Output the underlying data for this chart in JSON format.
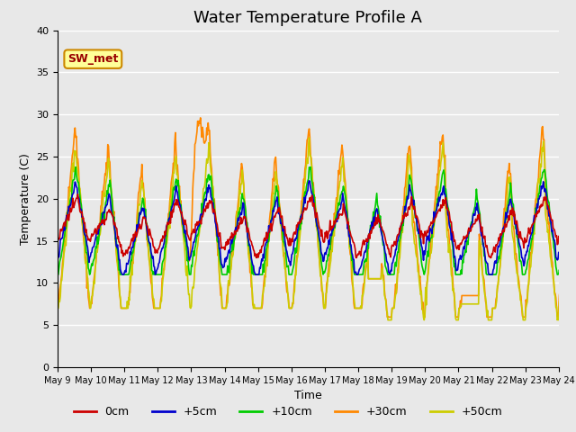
{
  "title": "Water Temperature Profile A",
  "xlabel": "Time",
  "ylabel": "Temperature (C)",
  "ylim": [
    0,
    40
  ],
  "yticks": [
    0,
    5,
    10,
    15,
    20,
    25,
    30,
    35,
    40
  ],
  "legend_labels": [
    "0cm",
    "+5cm",
    "+10cm",
    "+30cm",
    "+50cm"
  ],
  "line_colors": [
    "#cc0000",
    "#0000cc",
    "#00cc00",
    "#ff8800",
    "#cccc00"
  ],
  "line_widths": [
    1.2,
    1.2,
    1.2,
    1.2,
    1.2
  ],
  "annotation_text": "SW_met",
  "background_color": "#e8e8e8",
  "plot_bg_color": "#e8e8e8",
  "title_fontsize": 13,
  "axis_fontsize": 9,
  "tick_fontsize": 8,
  "num_days": 16,
  "start_day": 9,
  "points_per_day": 48
}
